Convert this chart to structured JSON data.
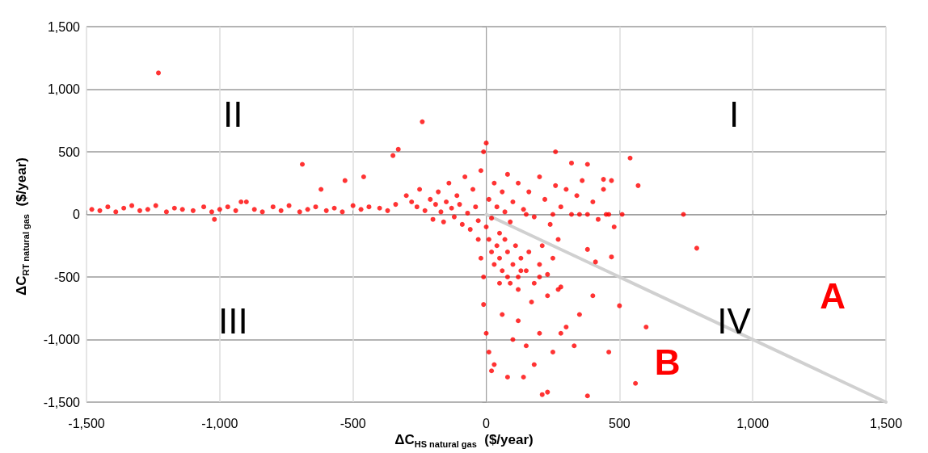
{
  "chart_data": {
    "type": "scatter",
    "xlabel": "ΔC$_{HS natural gas}$  ($/year)",
    "ylabel": "ΔC$_{RT natural gas}$  ($/year)",
    "xlim": [
      -1500,
      1500
    ],
    "xticks": [
      {
        "value": -1500,
        "label": "-1,500"
      },
      {
        "value": -1000,
        "label": "-1,000"
      },
      -500,
      0,
      500,
      {
        "value": 1000,
        "label": "1,000"
      },
      {
        "value": 1500,
        "label": "1,500"
      }
    ],
    "ylim": [
      -1500,
      1500
    ],
    "yticks": [
      {
        "value": -1500,
        "label": "-1,500"
      },
      {
        "value": -1000,
        "label": "-1,000"
      },
      -500,
      0,
      500,
      {
        "value": 1000,
        "label": "1,000"
      },
      {
        "value": 1500,
        "label": "1,500"
      }
    ],
    "grid": true,
    "marker": "circle",
    "series": [
      {
        "color": "#ff0000",
        "x": [
          -1480,
          -1450,
          -1420,
          -1390,
          -1360,
          -1330,
          -1300,
          -1270,
          -1240,
          -1200,
          -1170,
          -1140,
          -1100,
          -1060,
          -1030,
          -1000,
          -970,
          -940,
          -900,
          -870,
          -840,
          -800,
          -770,
          -740,
          -700,
          -670,
          -640,
          -600,
          -570,
          -540,
          -500,
          -470,
          -440,
          -400,
          -370,
          -340,
          -1230,
          -920,
          -1020,
          -690,
          -240,
          -330,
          -350,
          -620,
          -530,
          -460,
          -300,
          -280,
          -260,
          -250,
          -230,
          -210,
          -200,
          -190,
          -180,
          -170,
          -160,
          -150,
          -140,
          -130,
          -120,
          -110,
          -100,
          -90,
          -80,
          -70,
          -60,
          -50,
          -40,
          -30,
          -20,
          -10,
          0,
          10,
          20,
          30,
          40,
          50,
          60,
          70,
          80,
          90,
          100,
          120,
          140,
          160,
          180,
          200,
          220,
          240,
          260,
          280,
          300,
          320,
          340,
          360,
          380,
          400,
          420,
          440,
          460,
          480,
          150,
          250,
          350,
          450,
          510,
          260,
          320,
          380,
          440,
          470,
          540,
          570,
          740,
          790,
          470,
          380,
          410,
          0,
          10,
          20,
          30,
          40,
          50,
          60,
          70,
          80,
          90,
          100,
          110,
          120,
          130,
          150,
          160,
          180,
          200,
          210,
          230,
          250,
          270,
          280,
          -30,
          -20,
          -10,
          0,
          10,
          30,
          80,
          20,
          140,
          180,
          230,
          210,
          380,
          560,
          460,
          330,
          280,
          500,
          600,
          400,
          350,
          300,
          250,
          100,
          150,
          200,
          120,
          60,
          -10,
          170,
          230,
          270,
          120,
          50,
          80,
          130,
          200
        ],
        "values": [
          40,
          30,
          60,
          20,
          50,
          70,
          30,
          40,
          70,
          20,
          50,
          40,
          30,
          60,
          20,
          40,
          60,
          30,
          100,
          40,
          20,
          60,
          30,
          70,
          20,
          40,
          60,
          30,
          50,
          20,
          70,
          40,
          60,
          50,
          30,
          80,
          1130,
          100,
          -40,
          400,
          740,
          520,
          470,
          200,
          270,
          300,
          150,
          100,
          60,
          200,
          30,
          120,
          -40,
          80,
          180,
          20,
          -60,
          100,
          250,
          50,
          -20,
          150,
          80,
          -80,
          300,
          10,
          -120,
          200,
          60,
          -50,
          350,
          500,
          570,
          120,
          -30,
          250,
          60,
          -150,
          180,
          20,
          320,
          -60,
          100,
          250,
          40,
          180,
          -20,
          300,
          120,
          -80,
          230,
          60,
          200,
          0,
          150,
          270,
          0,
          100,
          -40,
          200,
          0,
          -100,
          0,
          0,
          0,
          0,
          0,
          500,
          410,
          400,
          280,
          270,
          450,
          230,
          0,
          -270,
          -340,
          -280,
          -380,
          -100,
          -200,
          -300,
          -400,
          -250,
          -350,
          -450,
          -200,
          -300,
          -550,
          -400,
          -250,
          -500,
          -350,
          -450,
          -300,
          -550,
          -400,
          -250,
          -480,
          -350,
          -200,
          -580,
          -200,
          -350,
          -500,
          -950,
          -1100,
          -1200,
          -1300,
          -1250,
          -1300,
          -1200,
          -1420,
          -1440,
          -1450,
          -1350,
          -1100,
          -1050,
          -950,
          -730,
          -900,
          -650,
          -800,
          -900,
          -1100,
          -1000,
          -1050,
          -950,
          -850,
          -800,
          -720,
          -700,
          -650,
          -600,
          -600,
          -550,
          -500,
          -450,
          -500
        ]
      },
      {
        "type": "line",
        "marker": "none",
        "color": "#d0d0d0",
        "x": [
          0,
          1500
        ],
        "values": [
          0,
          -1500
        ]
      }
    ],
    "annotations": [
      "I",
      "II",
      "III",
      "IV",
      "A",
      "B"
    ]
  }
}
